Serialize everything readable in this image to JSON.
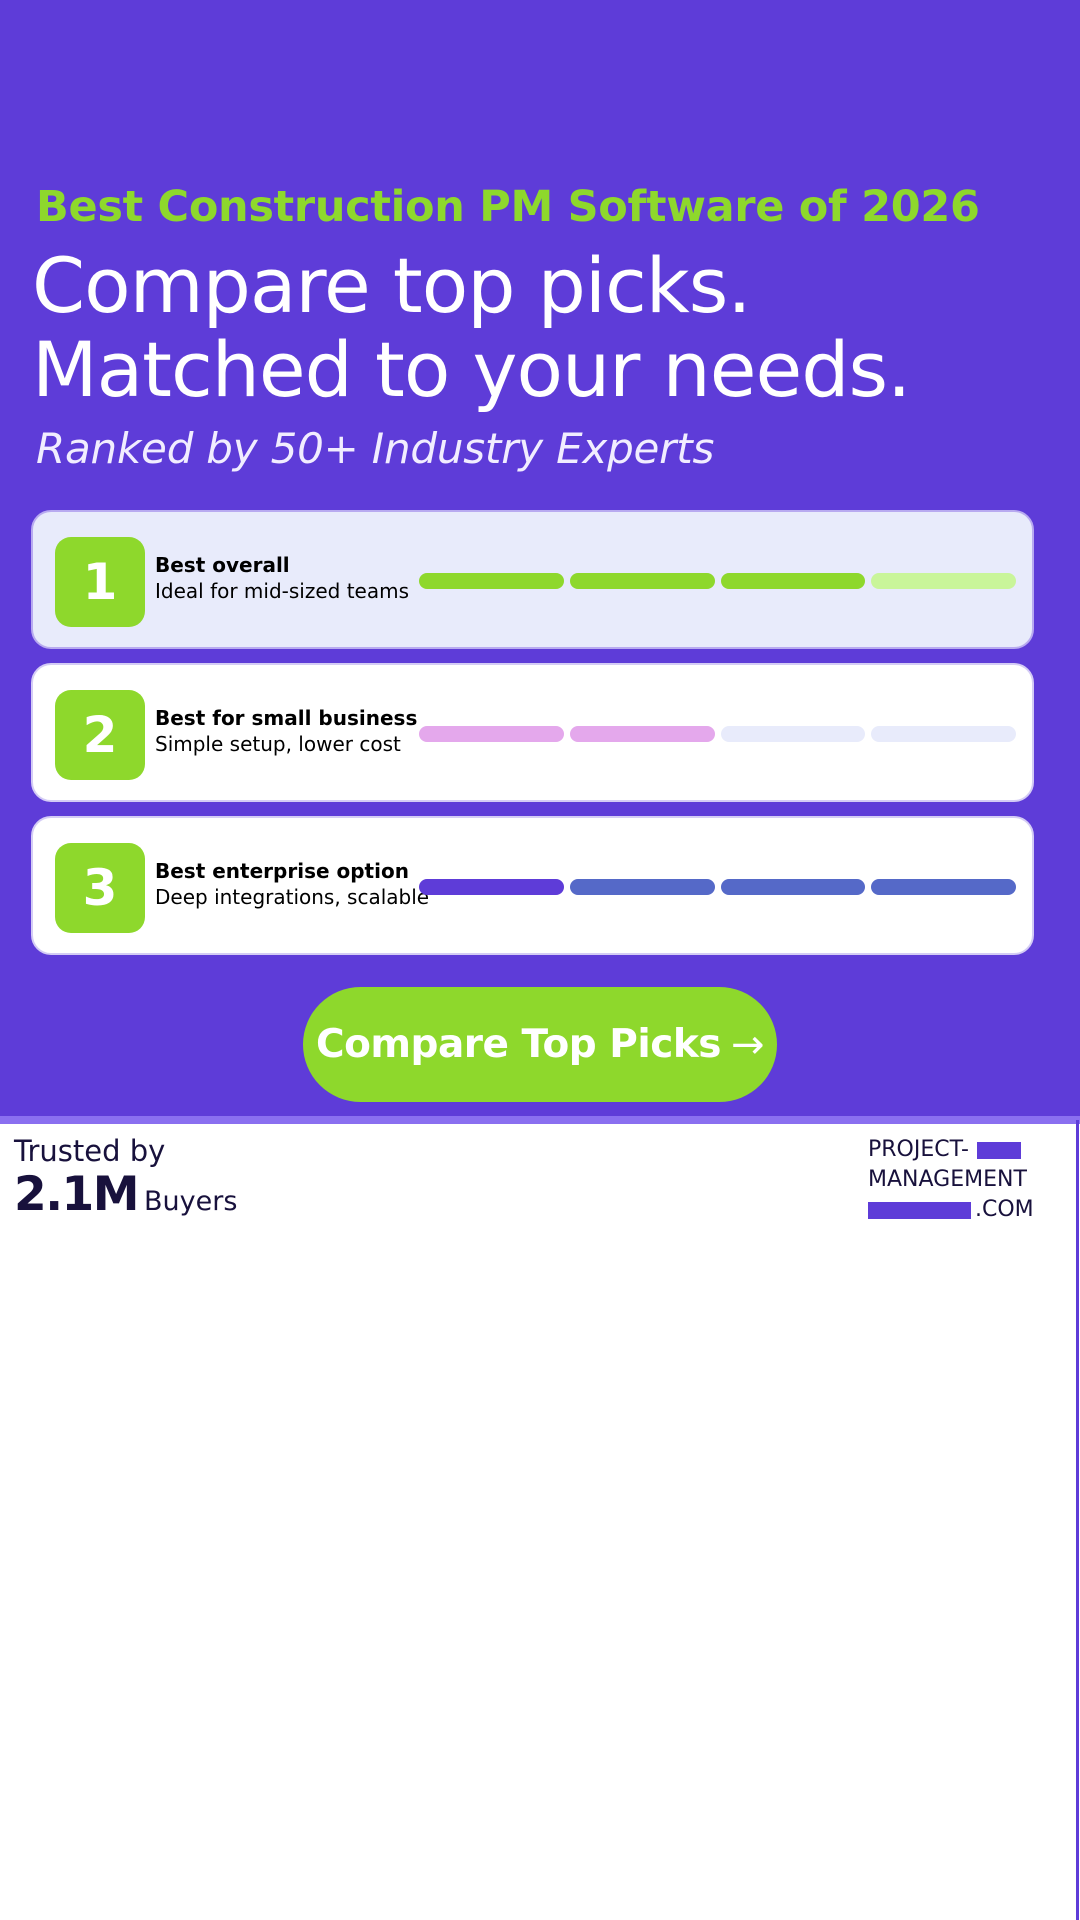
{
  "hero": {
    "kicker": "Best Construction PM Software of 2026",
    "headline_line1": "Compare top picks.",
    "headline_line2": "Matched to your needs.",
    "subline": "Ranked by 50+ Industry Experts"
  },
  "picks": [
    {
      "rank": "1",
      "title": "Best overall",
      "description": "Ideal for mid-sized teams",
      "score_colors": [
        "#8ed82c",
        "#8ed82c",
        "#8ed82c",
        "#c9f59a"
      ]
    },
    {
      "rank": "2",
      "title": "Best for small business",
      "description": "Simple setup, lower cost",
      "score_colors": [
        "#e4a8ec",
        "#e4a8ec",
        "#e8ebfb",
        "#e8ebfb"
      ]
    },
    {
      "rank": "3",
      "title": "Best enterprise option",
      "description": "Deep integrations, scalable",
      "score_colors": [
        "#5e3cd8",
        "#5569c8",
        "#5569c8",
        "#5569c8"
      ]
    }
  ],
  "cta": {
    "label": "Compare Top Picks",
    "arrow": "→"
  },
  "trust": {
    "label": "Trusted by",
    "count": "2.1M",
    "unit": "Buyers"
  },
  "logo": {
    "line1": "PROJECT-",
    "line2": "MANAGEMENT",
    "line3": ".COM"
  },
  "colors": {
    "brand_purple": "#5e3cd8",
    "accent_green": "#8ed82c",
    "dark_text": "#18113c"
  }
}
